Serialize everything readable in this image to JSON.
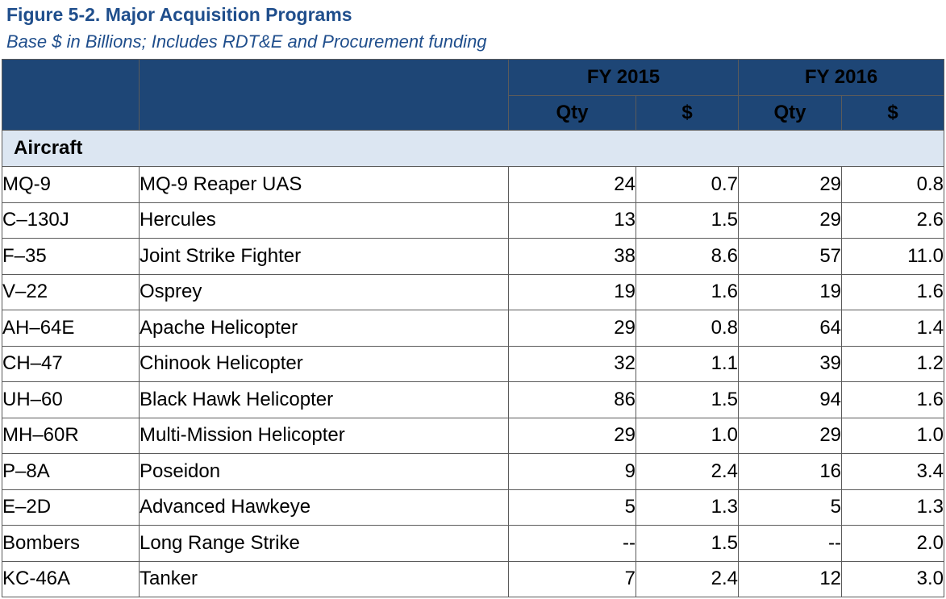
{
  "figure": {
    "title": "Figure 5-2. Major Acquisition Programs",
    "subtitle": "Base $ in Billions; Includes RDT&E and Procurement funding"
  },
  "chart_data": {
    "type": "table",
    "title": "Figure 5-2. Major Acquisition Programs",
    "subtitle": "Base $ in Billions; Includes RDT&E and Procurement funding",
    "column_groups": [
      "FY 2015",
      "FY 2016"
    ],
    "subcolumns": [
      "Qty",
      "$"
    ],
    "section": "Aircraft",
    "rows": [
      {
        "code": "MQ-9",
        "name": "MQ-9 Reaper UAS",
        "fy2015_qty": "24",
        "fy2015_usd": "0.7",
        "fy2016_qty": "29",
        "fy2016_usd": "0.8"
      },
      {
        "code": "C–130J",
        "name": "Hercules",
        "fy2015_qty": "13",
        "fy2015_usd": "1.5",
        "fy2016_qty": "29",
        "fy2016_usd": "2.6"
      },
      {
        "code": "F–35",
        "name": "Joint Strike Fighter",
        "fy2015_qty": "38",
        "fy2015_usd": "8.6",
        "fy2016_qty": "57",
        "fy2016_usd": "11.0"
      },
      {
        "code": "V–22",
        "name": "Osprey",
        "fy2015_qty": "19",
        "fy2015_usd": "1.6",
        "fy2016_qty": "19",
        "fy2016_usd": "1.6"
      },
      {
        "code": "AH–64E",
        "name": "Apache Helicopter",
        "fy2015_qty": "29",
        "fy2015_usd": "0.8",
        "fy2016_qty": "64",
        "fy2016_usd": "1.4"
      },
      {
        "code": "CH–47",
        "name": "Chinook Helicopter",
        "fy2015_qty": "32",
        "fy2015_usd": "1.1",
        "fy2016_qty": "39",
        "fy2016_usd": "1.2"
      },
      {
        "code": "UH–60",
        "name": "Black Hawk Helicopter",
        "fy2015_qty": "86",
        "fy2015_usd": "1.5",
        "fy2016_qty": "94",
        "fy2016_usd": "1.6"
      },
      {
        "code": "MH–60R",
        "name": "Multi-Mission Helicopter",
        "fy2015_qty": "29",
        "fy2015_usd": "1.0",
        "fy2016_qty": "29",
        "fy2016_usd": "1.0"
      },
      {
        "code": "P–8A",
        "name": "Poseidon",
        "fy2015_qty": "9",
        "fy2015_usd": "2.4",
        "fy2016_qty": "16",
        "fy2016_usd": "3.4"
      },
      {
        "code": "E–2D",
        "name": "Advanced Hawkeye",
        "fy2015_qty": "5",
        "fy2015_usd": "1.3",
        "fy2016_qty": "5",
        "fy2016_usd": "1.3"
      },
      {
        "code": "Bombers",
        "name": "Long Range Strike",
        "fy2015_qty": "--",
        "fy2015_usd": "1.5",
        "fy2016_qty": "--",
        "fy2016_usd": "2.0"
      },
      {
        "code": "KC-46A",
        "name": "Tanker",
        "fy2015_qty": "7",
        "fy2015_usd": "2.4",
        "fy2016_qty": "12",
        "fy2016_usd": "3.0"
      }
    ]
  },
  "colors": {
    "header_bg": "#1e4676",
    "section_bg": "#dce6f2",
    "title_color": "#1f4e8c"
  }
}
